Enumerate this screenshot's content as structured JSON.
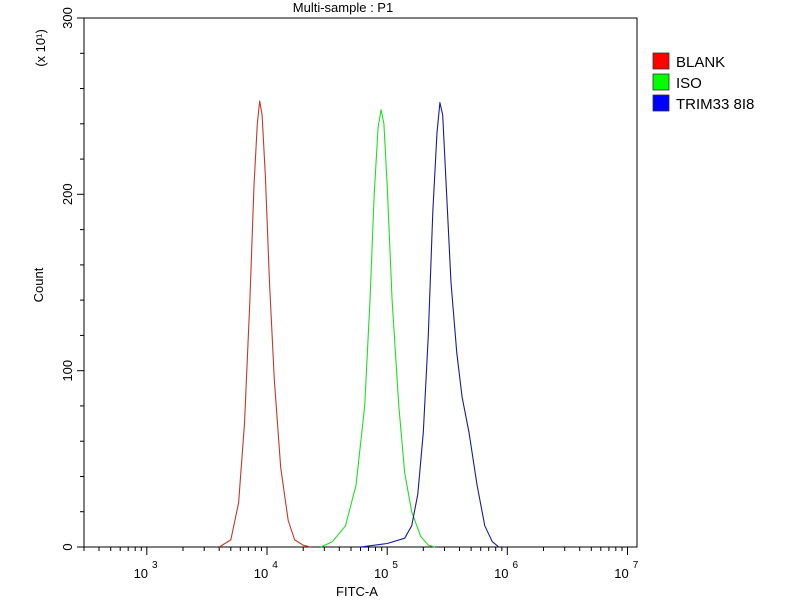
{
  "chart_data": {
    "type": "line",
    "title": "Multi-sample : P1",
    "xlabel": "FITC-A",
    "ylabel": "Count",
    "y_multiplier_label": "(x 10¹)",
    "x_scale": "log",
    "xlim": [
      300,
      12000000
    ],
    "ylim": [
      0,
      300
    ],
    "x_ticks": [
      {
        "value": 1000,
        "base": "10",
        "exp": "3"
      },
      {
        "value": 10000,
        "base": "10",
        "exp": "4"
      },
      {
        "value": 100000,
        "base": "10",
        "exp": "5"
      },
      {
        "value": 1000000,
        "base": "10",
        "exp": "6"
      },
      {
        "value": 10000000,
        "base": "10",
        "exp": "7"
      }
    ],
    "y_ticks": [
      {
        "value": 0,
        "label": "0"
      },
      {
        "value": 100,
        "label": "100"
      },
      {
        "value": 200,
        "label": "200"
      },
      {
        "value": 300,
        "label": "300"
      }
    ],
    "grid": false,
    "legend_position": "top-right",
    "series": [
      {
        "name": "BLANK",
        "color": "#c0392b",
        "legend_color": "#ff0000",
        "x": [
          4000,
          5000,
          5800,
          6500,
          7200,
          7800,
          8300,
          8700,
          9100,
          9700,
          10500,
          11500,
          13000,
          15000,
          17000,
          20000,
          23000
        ],
        "y": [
          0,
          4,
          25,
          70,
          140,
          205,
          240,
          253,
          245,
          210,
          150,
          95,
          45,
          15,
          4,
          1,
          0
        ]
      },
      {
        "name": "ISO",
        "color": "#22dd22",
        "legend_color": "#00ff00",
        "x": [
          28000,
          35000,
          45000,
          55000,
          65000,
          72000,
          78000,
          84000,
          89000,
          94000,
          100000,
          110000,
          125000,
          140000,
          160000,
          190000,
          220000,
          250000
        ],
        "y": [
          0,
          3,
          12,
          35,
          80,
          140,
          200,
          238,
          248,
          240,
          205,
          140,
          80,
          42,
          20,
          6,
          1,
          0
        ]
      },
      {
        "name": "TRIM33 8I8",
        "color": "#1a1a99",
        "legend_color": "#0000ff",
        "x": [
          60000,
          100000,
          140000,
          160000,
          180000,
          200000,
          220000,
          240000,
          260000,
          275000,
          290000,
          310000,
          340000,
          380000,
          420000,
          480000,
          560000,
          650000,
          750000,
          850000
        ],
        "y": [
          0,
          2,
          5,
          12,
          30,
          65,
          120,
          190,
          235,
          252,
          245,
          205,
          150,
          110,
          85,
          65,
          35,
          12,
          3,
          0
        ]
      }
    ]
  }
}
